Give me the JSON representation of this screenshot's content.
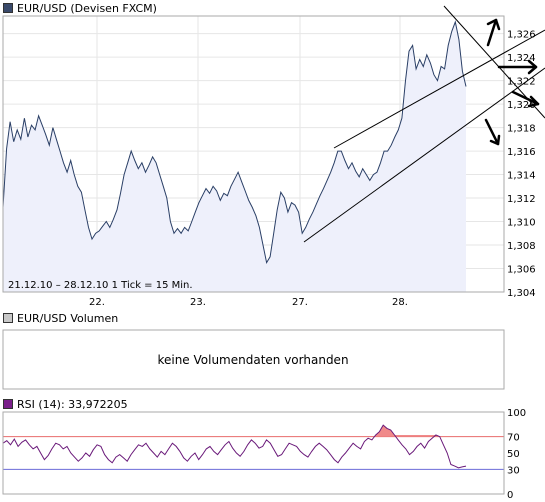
{
  "colors": {
    "price_line": "#2a3f66",
    "price_fill": "#eef0fb",
    "rsi_line": "#6a1a7a",
    "rsi_upper": "#e86b6b",
    "rsi_lower": "#6b6bd8",
    "rsi_overbought_fill": "#f08a8a",
    "trendline": "#000000"
  },
  "price_panel": {
    "title": "EUR/USD (Devisen FXCM)",
    "period_note": "21.12.10 – 28.12.10   1 Tick = 15 Min."
  },
  "volume_panel": {
    "title": "EUR/USD Volumen",
    "message": "keine Volumendaten vorhanden"
  },
  "rsi_panel": {
    "title": "RSI (14): 33,972205"
  },
  "chart_data": [
    {
      "type": "area",
      "ylim": [
        1.304,
        1.3275
      ],
      "yticks": [
        "1,304",
        "1,306",
        "1,308",
        "1,310",
        "1,312",
        "1,314",
        "1,316",
        "1,318",
        "1,320",
        "1,322",
        "1,324",
        "1,326"
      ],
      "x_labels": [
        "22.",
        "23.",
        "27.",
        "28."
      ],
      "series": [
        {
          "values": [
            1.3112,
            1.3162,
            1.3185,
            1.3168,
            1.3178,
            1.317,
            1.3188,
            1.3172,
            1.3182,
            1.3178,
            1.319,
            1.3182,
            1.3174,
            1.3165,
            1.318,
            1.317,
            1.316,
            1.315,
            1.3142,
            1.3152,
            1.314,
            1.313,
            1.3125,
            1.311,
            1.3095,
            1.3085,
            1.309,
            1.3092,
            1.3096,
            1.31,
            1.3095,
            1.3102,
            1.311,
            1.3124,
            1.314,
            1.315,
            1.316,
            1.3152,
            1.3145,
            1.315,
            1.3142,
            1.3148,
            1.3155,
            1.315,
            1.314,
            1.313,
            1.312,
            1.31,
            1.309,
            1.3094,
            1.309,
            1.3095,
            1.3092,
            1.31,
            1.3108,
            1.3116,
            1.3122,
            1.3128,
            1.3124,
            1.313,
            1.3126,
            1.3118,
            1.3124,
            1.3122,
            1.313,
            1.3136,
            1.3142,
            1.3134,
            1.3126,
            1.3118,
            1.3112,
            1.3105,
            1.3095,
            1.308,
            1.3065,
            1.307,
            1.309,
            1.311,
            1.3125,
            1.312,
            1.3108,
            1.3116,
            1.3114,
            1.3108,
            1.309,
            1.3095,
            1.3102,
            1.3108,
            1.3115,
            1.3122,
            1.3128,
            1.3135,
            1.3142,
            1.315,
            1.316,
            1.316,
            1.3152,
            1.3145,
            1.315,
            1.3143,
            1.3138,
            1.3145,
            1.314,
            1.3135,
            1.314,
            1.3142,
            1.315,
            1.316,
            1.316,
            1.3165,
            1.3172,
            1.3178,
            1.3188,
            1.322,
            1.3245,
            1.325,
            1.323,
            1.3238,
            1.3232,
            1.3242,
            1.3235,
            1.3225,
            1.322,
            1.3232,
            1.323,
            1.325,
            1.3262,
            1.327,
            1.3255,
            1.3228,
            1.3215
          ]
        }
      ]
    },
    {
      "type": "line",
      "ylim": [
        0,
        100
      ],
      "yticks": [
        "0",
        "30",
        "50",
        "70",
        "100"
      ],
      "reference_lines": [
        70,
        30
      ],
      "series": [
        {
          "values": [
            62,
            65,
            60,
            67,
            58,
            63,
            66,
            60,
            55,
            58,
            50,
            42,
            47,
            55,
            62,
            60,
            55,
            58,
            50,
            45,
            40,
            44,
            50,
            46,
            54,
            60,
            58,
            48,
            42,
            38,
            45,
            48,
            44,
            40,
            48,
            54,
            60,
            58,
            62,
            55,
            50,
            45,
            52,
            48,
            55,
            62,
            58,
            52,
            44,
            40,
            46,
            50,
            42,
            48,
            55,
            58,
            52,
            48,
            54,
            60,
            64,
            56,
            50,
            46,
            52,
            60,
            66,
            62,
            56,
            58,
            66,
            62,
            54,
            46,
            48,
            55,
            62,
            60,
            58,
            52,
            48,
            45,
            52,
            58,
            62,
            58,
            54,
            48,
            42,
            38,
            45,
            50,
            56,
            62,
            58,
            55,
            64,
            68,
            66,
            72,
            76,
            84,
            80,
            78,
            72,
            66,
            60,
            55,
            48,
            52,
            58,
            62,
            56,
            64,
            68,
            72,
            70,
            60,
            50,
            36,
            34,
            32,
            33,
            34
          ]
        }
      ]
    }
  ]
}
